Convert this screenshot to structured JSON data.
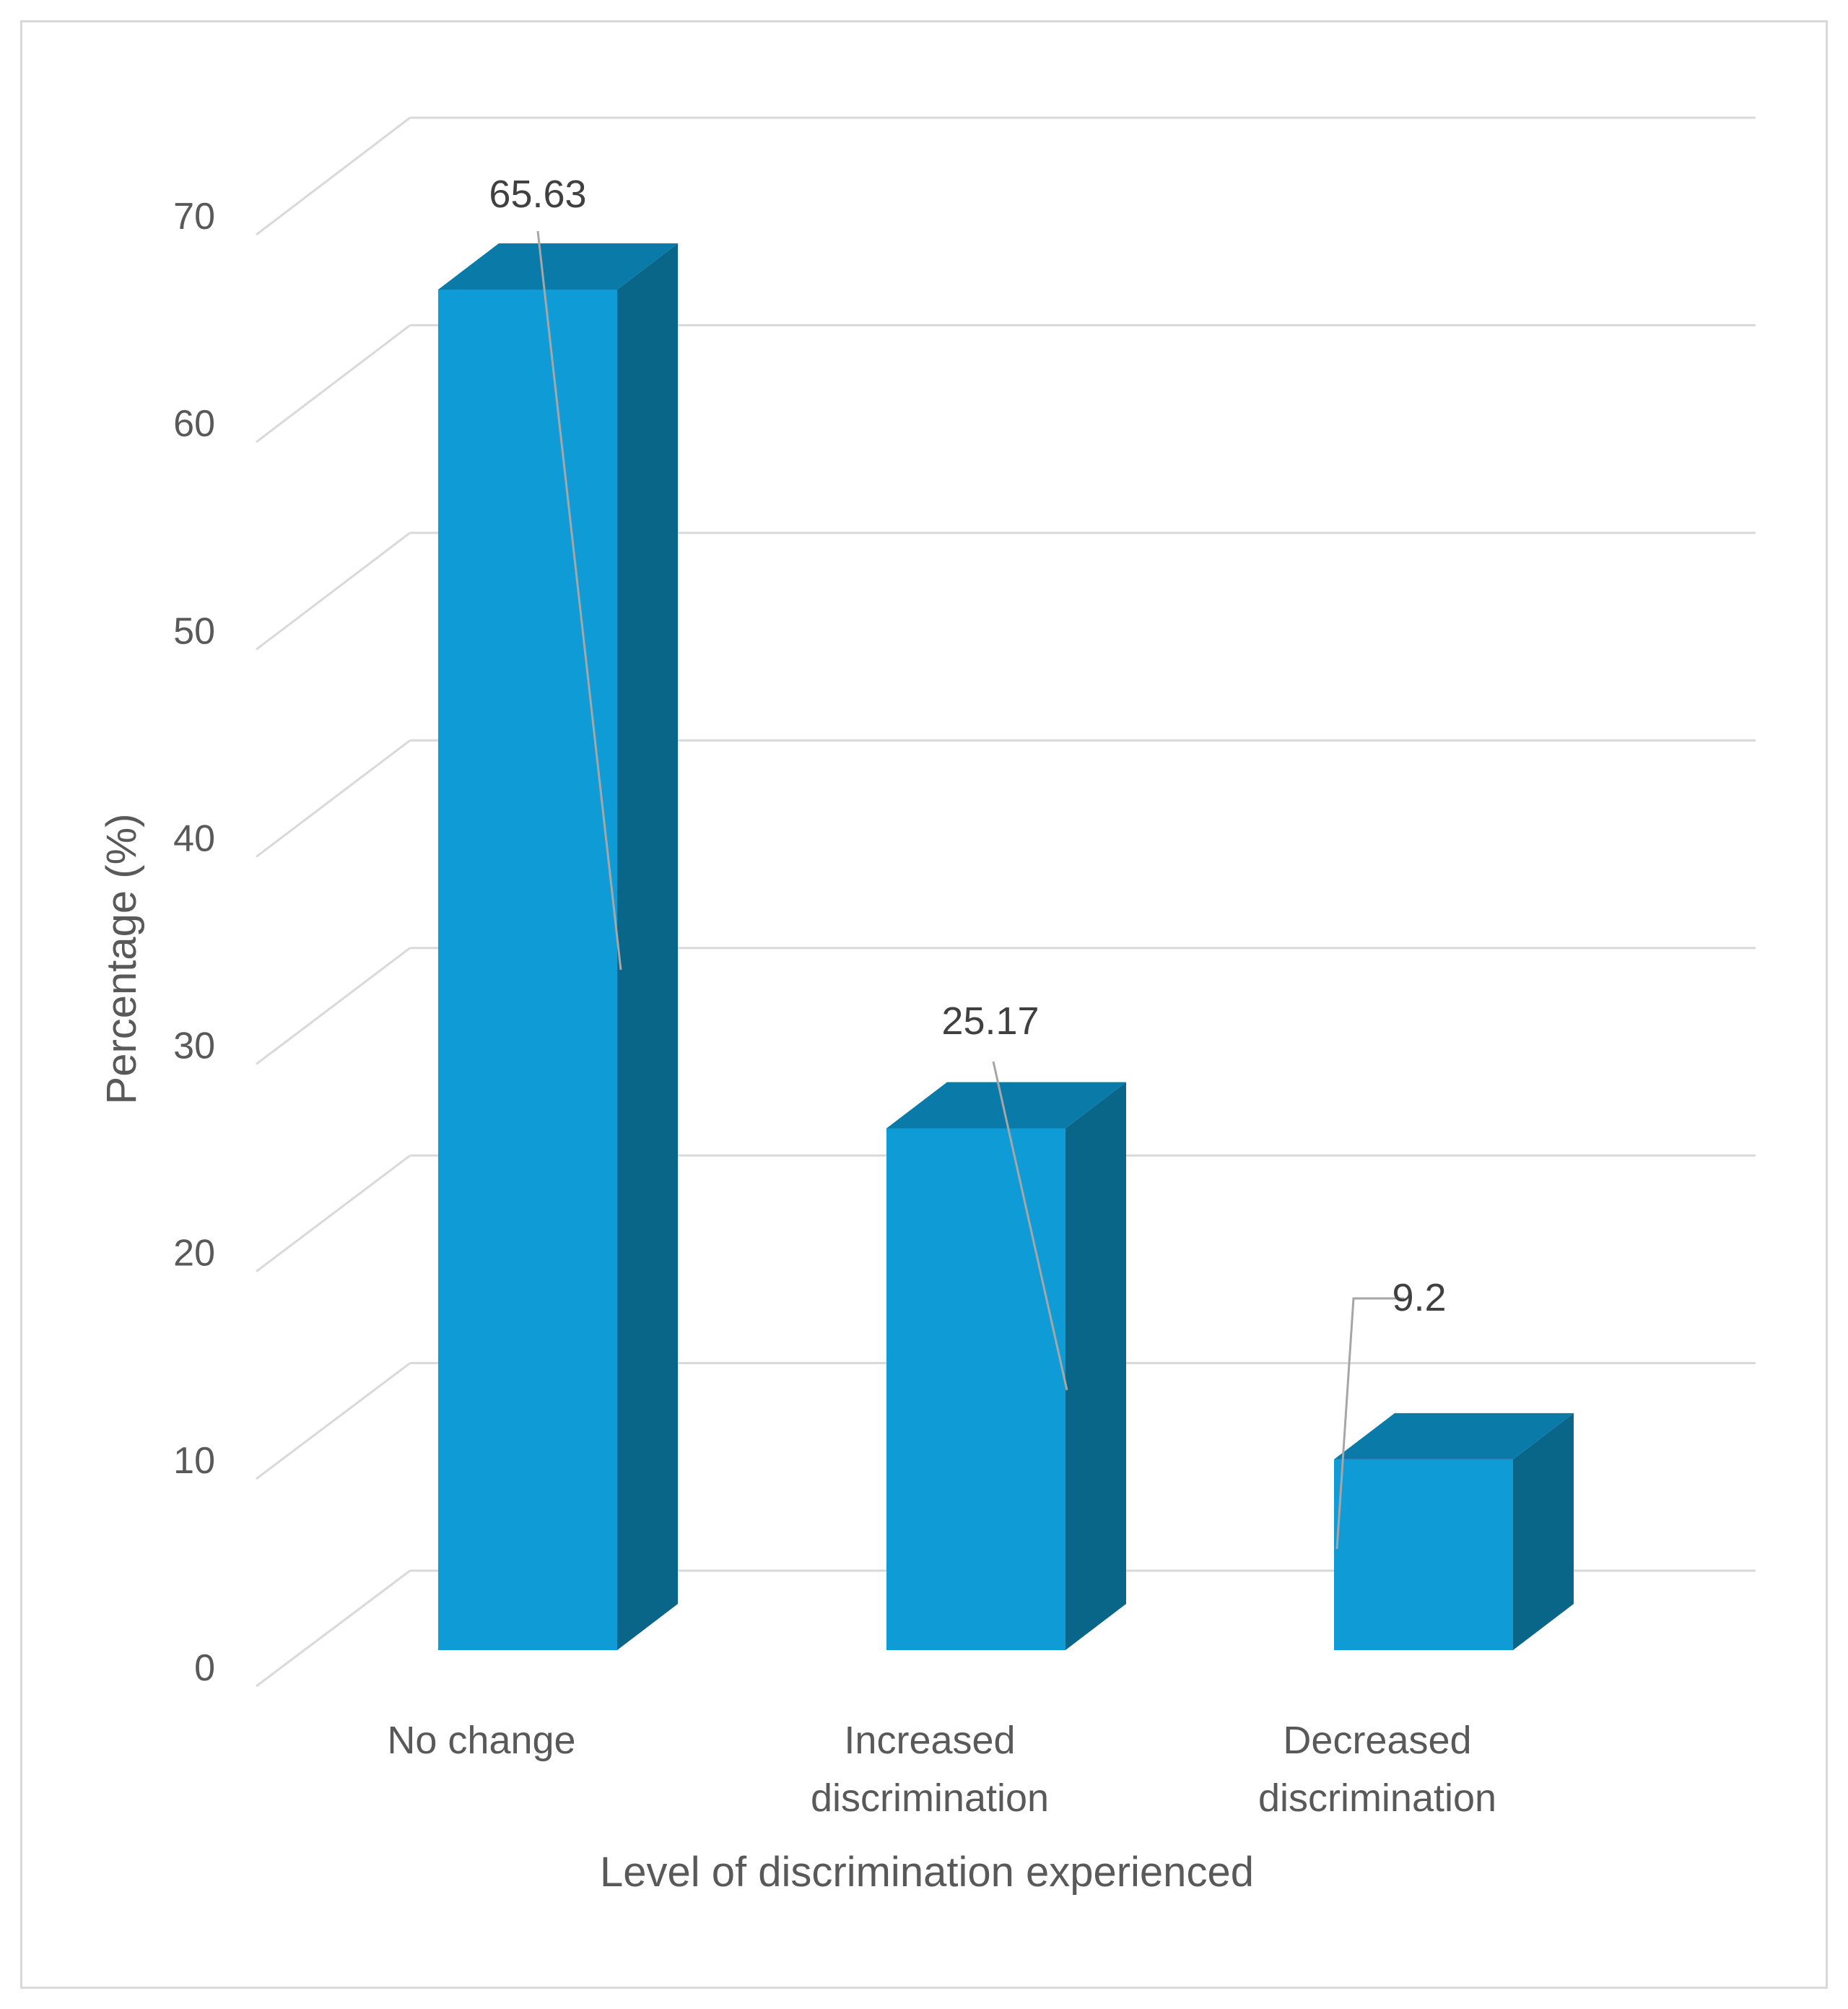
{
  "chart_data": {
    "type": "bar",
    "style": "3d-column",
    "title": "",
    "xlabel": "Level of discrimination experienced",
    "ylabel": "Percentage (%)",
    "categories": [
      [
        "No change"
      ],
      [
        "Increased",
        "discrimination"
      ],
      [
        "Decreased",
        "discrimination"
      ]
    ],
    "values": [
      65.63,
      25.17,
      9.2
    ],
    "data_labels": [
      "65.63",
      "25.17",
      "9.2"
    ],
    "ylim": [
      0,
      70
    ],
    "yticks": [
      0,
      10,
      20,
      30,
      40,
      50,
      60,
      70
    ],
    "grid": true,
    "legend": "none",
    "colors": {
      "bar_front": "#0f9cd6",
      "bar_top": "#0a7aa8",
      "bar_side": "#0a6688",
      "grid": "#d9d9d9",
      "leader": "#a6a6a6"
    }
  }
}
